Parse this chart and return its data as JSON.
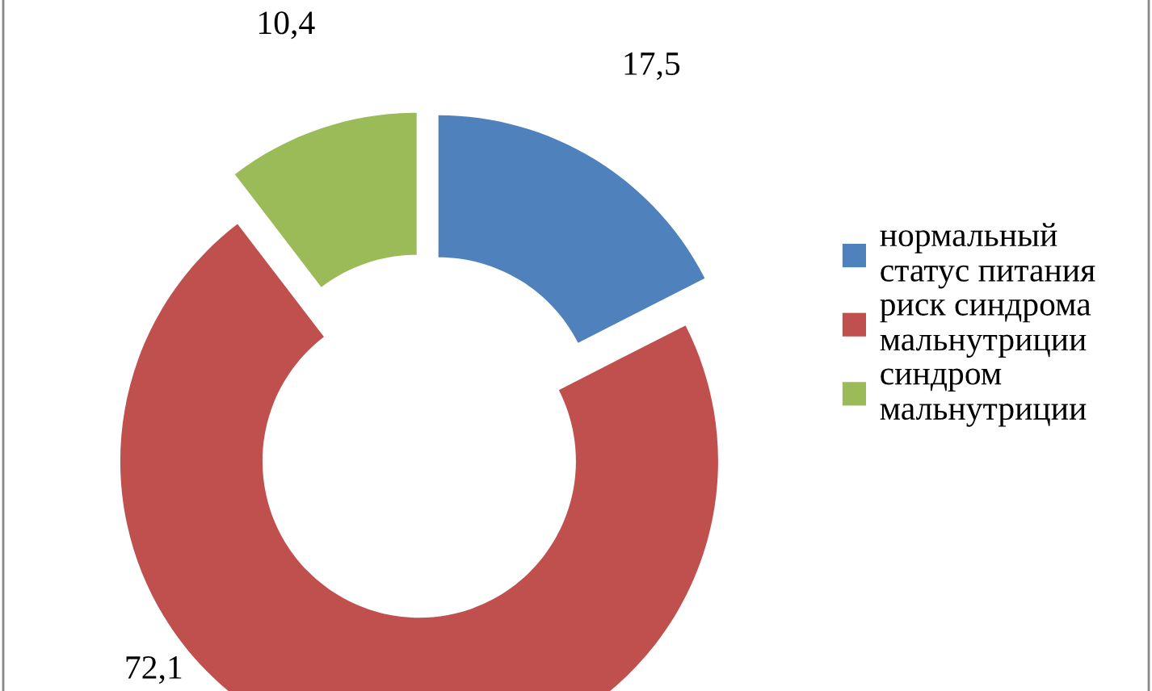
{
  "chart_data": {
    "type": "donut",
    "categories": [
      "нормальный статус питания",
      "риск синдрома мальнутриции",
      "синдром мальнутриции"
    ],
    "values": [
      17.5,
      72.1,
      10.4
    ],
    "colors": [
      "#4f81bd",
      "#c0504d",
      "#9bbb59"
    ],
    "value_labels": [
      "17,5",
      "72,1",
      "10,4"
    ],
    "legend": "right"
  }
}
